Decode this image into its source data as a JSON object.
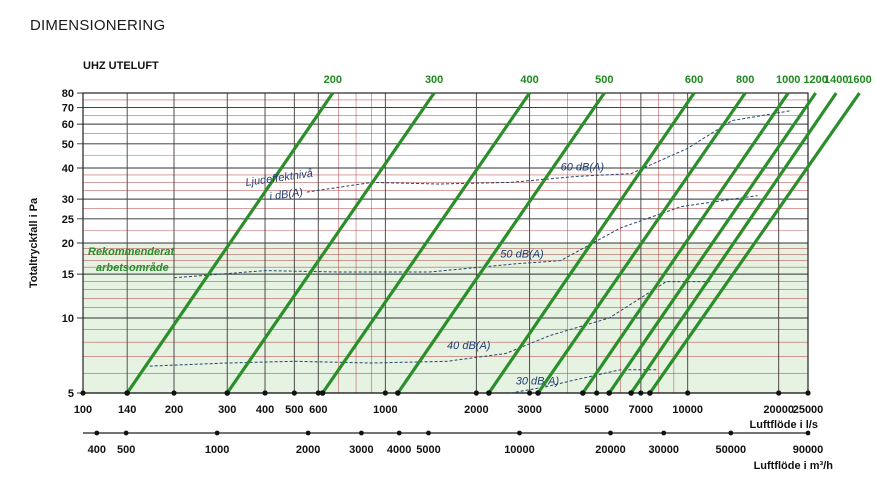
{
  "heading": "DIMENSIONERING",
  "chart_data": {
    "type": "line",
    "title": "UHZ UTELUFT",
    "ylabel": "Totaltryckfall i Pa",
    "xlabel": "Luftflöde i l/s",
    "xlabel2": "Luftflöde i m³/h",
    "xscale": "log",
    "yscale": "log",
    "xlim": [
      100,
      25000
    ],
    "ylim": [
      5,
      80
    ],
    "grid": true,
    "y_ticks": [
      "5",
      "10",
      "15",
      "20",
      "25",
      "30",
      "40",
      "50",
      "60",
      "70",
      "80"
    ],
    "x_ticks": [
      "100",
      "140",
      "200",
      "300",
      "400",
      "500",
      "600",
      "1000",
      "2000",
      "3000",
      "5000",
      "7000",
      "10000",
      "20000",
      "25000"
    ],
    "x2_ticks": [
      "400",
      "500",
      "1000",
      "2000",
      "3000",
      "4000",
      "5000",
      "10000",
      "20000",
      "30000",
      "50000",
      "90000"
    ],
    "recommended_area": {
      "label_line1": "Rekommenderat",
      "label_line2": "arbetsområde",
      "ymax": 20
    },
    "sound_title_line1": "Ljudeffektnivå",
    "sound_title_line2": "i dB(A)",
    "series": [
      {
        "name": "200",
        "x": [
          140,
          670
        ],
        "y": [
          5,
          80
        ]
      },
      {
        "name": "300",
        "x": [
          300,
          1450
        ],
        "y": [
          5,
          80
        ]
      },
      {
        "name": "400",
        "x": [
          620,
          3000
        ],
        "y": [
          5,
          80
        ]
      },
      {
        "name": "500",
        "x": [
          1100,
          5300
        ],
        "y": [
          5,
          80
        ]
      },
      {
        "name": "600",
        "x": [
          2200,
          10500
        ],
        "y": [
          5,
          80
        ]
      },
      {
        "name": "800",
        "x": [
          3200,
          15500
        ],
        "y": [
          5,
          80
        ]
      },
      {
        "name": "1000",
        "x": [
          4500,
          21500
        ],
        "y": [
          5,
          80
        ]
      },
      {
        "name": "1200",
        "x": [
          5500,
          26500
        ],
        "y": [
          5,
          80
        ]
      },
      {
        "name": "1400",
        "x": [
          6500,
          31000
        ],
        "y": [
          5,
          80
        ]
      },
      {
        "name": "1600",
        "x": [
          7500,
          37000
        ],
        "y": [
          5,
          80
        ]
      }
    ],
    "sound_curves": [
      {
        "name": "60 dB(A)",
        "x": [
          550,
          900,
          1500,
          2600,
          4300,
          6500,
          10000,
          14000,
          22000
        ],
        "y": [
          32,
          35,
          34.5,
          35,
          37,
          38,
          48,
          62,
          68
        ]
      },
      {
        "name": "50 dB(A)",
        "x": [
          200,
          400,
          700,
          1400,
          2700,
          3800,
          6000,
          9500,
          17000
        ],
        "y": [
          14.5,
          15.5,
          15.3,
          15.3,
          16.5,
          17,
          23,
          28,
          31
        ]
      },
      {
        "name": "40 dB(A)",
        "x": [
          160,
          300,
          500,
          900,
          1600,
          2500,
          3500,
          5500,
          8500,
          12000
        ],
        "y": [
          6.4,
          6.6,
          6.7,
          6.6,
          6.7,
          7.2,
          8.5,
          10,
          14,
          14
        ]
      },
      {
        "name": "30 dB(A)",
        "x": [
          2600,
          3400,
          4400,
          6000,
          8000
        ],
        "y": [
          5,
          5.3,
          5.7,
          6.2,
          6.2
        ]
      }
    ],
    "series_labels": [
      {
        "text": "60 dB(A)",
        "x": 3800,
        "y": 39
      },
      {
        "text": "50 dB(A)",
        "x": 2400,
        "y": 17.5
      },
      {
        "text": "40 dB(A)",
        "x": 1600,
        "y": 7.5
      },
      {
        "text": "30 dB(A)",
        "x": 2700,
        "y": 5.4
      }
    ]
  },
  "colors": {
    "green_line": "#2a8f2a",
    "area": "#e6f2e2",
    "grid": "#b03030",
    "sound": "#22466e"
  }
}
